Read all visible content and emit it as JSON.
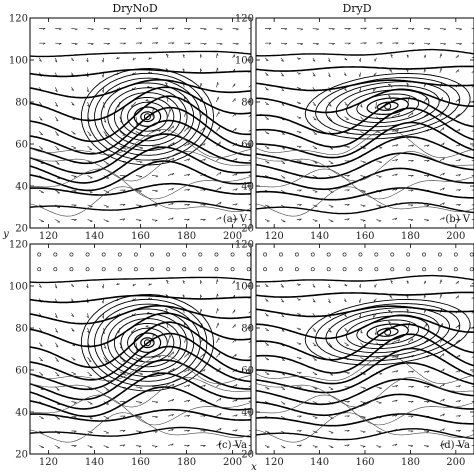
{
  "figure": {
    "column_titles": [
      "DryNoD",
      "DryD"
    ],
    "x_axis_label": "x",
    "y_axis_label": "y"
  },
  "chart_data": [
    {
      "type": "contour",
      "title": "DryNoD",
      "panel_label": "(a) V",
      "x_ticks": [
        120,
        140,
        160,
        180,
        200
      ],
      "y_ticks": [
        20,
        40,
        60,
        80,
        100,
        120
      ],
      "xlim": [
        112,
        208
      ],
      "ylim": [
        20,
        120
      ],
      "vortex_center": [
        163,
        73
      ],
      "contours": "thick height lines with embedded cyclonic vortex; thin stream lines; vector arrows",
      "grid": false
    },
    {
      "type": "contour",
      "title": "DryD",
      "panel_label": "(b) V",
      "x_ticks": [
        120,
        140,
        160,
        180,
        200
      ],
      "y_ticks": [
        20,
        40,
        60,
        80,
        100,
        120
      ],
      "xlim": [
        112,
        208
      ],
      "ylim": [
        20,
        120
      ],
      "vortex_center": [
        170,
        78
      ],
      "contours": "thick height lines with weaker vortex; thin stream lines; vector arrows",
      "grid": false
    },
    {
      "type": "contour",
      "title": "",
      "panel_label": "(c) Va",
      "x_ticks": [
        120,
        140,
        160,
        180,
        200
      ],
      "y_ticks": [
        20,
        40,
        60,
        80,
        100,
        120
      ],
      "xlim": [
        112,
        208
      ],
      "ylim": [
        20,
        120
      ],
      "vortex_center": [
        163,
        73
      ],
      "contours": "thick height lines with embedded cyclonic vortex; thin stream lines; ageostrophic vectors",
      "grid": false
    },
    {
      "type": "contour",
      "title": "",
      "panel_label": "(d) Va",
      "x_ticks": [
        120,
        140,
        160,
        180,
        200
      ],
      "y_ticks": [
        20,
        40,
        60,
        80,
        100,
        120
      ],
      "xlim": [
        112,
        208
      ],
      "ylim": [
        20,
        120
      ],
      "vortex_center": [
        170,
        78
      ],
      "contours": "thick height lines with weaker vortex; thin stream lines; ageostrophic vectors",
      "grid": false
    }
  ]
}
